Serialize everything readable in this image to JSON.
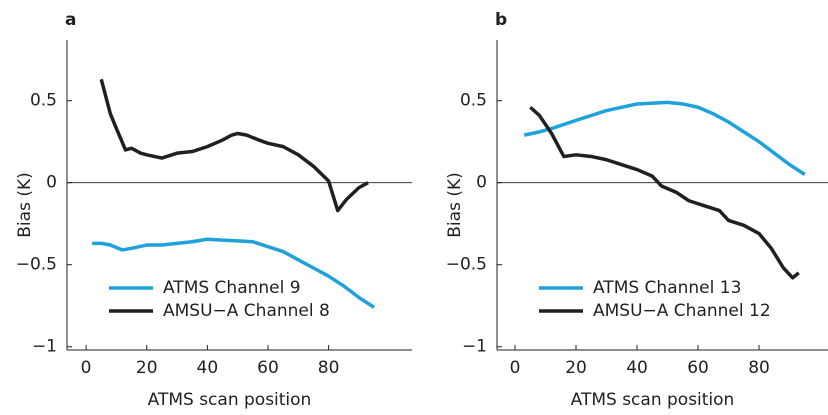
{
  "chart_data": [
    {
      "type": "line",
      "panel_label": "a",
      "ylabel": "Bias (K)",
      "xlabel": "ATMS scan position",
      "xlim": [
        -6.3,
        107.5
      ],
      "ylim": [
        -1.02,
        0.87
      ],
      "xticks": [
        0,
        20,
        40,
        60,
        80
      ],
      "yticks": [
        {
          "value": -1,
          "label": "−1"
        },
        {
          "value": -0.5,
          "label": "−0.5"
        },
        0,
        0.5
      ],
      "zero_line": true,
      "series": [
        {
          "name": "ATMS Channel 9",
          "color": "#1fa2dc",
          "x": [
            2,
            5,
            8,
            12,
            15,
            20,
            25,
            30,
            35,
            40,
            45,
            50,
            55,
            60,
            65,
            70,
            75,
            80,
            85,
            90,
            95
          ],
          "values": [
            -0.37,
            -0.37,
            -0.38,
            -0.41,
            -0.4,
            -0.38,
            -0.38,
            -0.37,
            -0.36,
            -0.345,
            -0.35,
            -0.355,
            -0.36,
            -0.39,
            -0.42,
            -0.47,
            -0.52,
            -0.57,
            -0.63,
            -0.7,
            -0.76
          ]
        },
        {
          "name": "AMSU−A Channel 8",
          "color": "#231f20",
          "x": [
            5,
            8,
            10,
            13,
            15,
            18,
            20,
            25,
            30,
            35,
            40,
            45,
            48,
            50,
            53,
            57,
            60,
            65,
            70,
            75,
            80,
            83,
            86,
            90,
            93
          ],
          "values": [
            0.63,
            0.42,
            0.33,
            0.2,
            0.21,
            0.18,
            0.17,
            0.15,
            0.18,
            0.19,
            0.22,
            0.26,
            0.29,
            0.3,
            0.29,
            0.26,
            0.24,
            0.22,
            0.17,
            0.1,
            0.01,
            -0.17,
            -0.1,
            -0.03,
            0.0
          ]
        }
      ]
    },
    {
      "type": "line",
      "panel_label": "b",
      "ylabel": "Bias (K)",
      "xlabel": "ATMS scan position",
      "xlim": [
        -5.9,
        102.6
      ],
      "ylim": [
        -1.02,
        0.87
      ],
      "xticks": [
        0,
        20,
        40,
        60,
        80
      ],
      "yticks": [
        {
          "value": -1,
          "label": "−1"
        },
        {
          "value": -0.5,
          "label": "−0.5"
        },
        0,
        0.5
      ],
      "zero_line": true,
      "series": [
        {
          "name": "ATMS Channel 13",
          "color": "#1fa2dc",
          "x": [
            3,
            8,
            12,
            20,
            30,
            40,
            50,
            55,
            60,
            65,
            70,
            75,
            80,
            85,
            90,
            95
          ],
          "values": [
            0.29,
            0.31,
            0.33,
            0.38,
            0.44,
            0.48,
            0.49,
            0.48,
            0.46,
            0.42,
            0.37,
            0.31,
            0.25,
            0.18,
            0.11,
            0.05
          ]
        },
        {
          "name": "AMSU−A Channel 12",
          "color": "#231f20",
          "x": [
            5,
            8,
            12,
            16,
            20,
            25,
            30,
            35,
            40,
            45,
            48,
            53,
            57,
            62,
            67,
            70,
            75,
            80,
            84,
            88,
            91,
            93
          ],
          "values": [
            0.46,
            0.41,
            0.3,
            0.16,
            0.17,
            0.16,
            0.14,
            0.11,
            0.08,
            0.04,
            -0.02,
            -0.06,
            -0.11,
            -0.14,
            -0.17,
            -0.23,
            -0.26,
            -0.31,
            -0.4,
            -0.52,
            -0.58,
            -0.55
          ]
        }
      ]
    }
  ]
}
